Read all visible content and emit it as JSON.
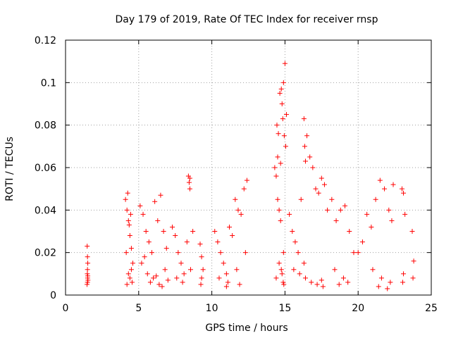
{
  "chart_data": {
    "type": "scatter",
    "title": "Day 179 of 2019, Rate Of TEC Index for receiver rnsp",
    "xlabel": "GPS time / hours",
    "ylabel": "ROTI / TECUs",
    "xlim": [
      0,
      25
    ],
    "ylim": [
      0,
      0.12
    ],
    "xticks": [
      0,
      5,
      10,
      15,
      20,
      25
    ],
    "xtick_labels": [
      "0",
      "5",
      "10",
      "15",
      "20",
      "25"
    ],
    "yticks": [
      0,
      0.02,
      0.04,
      0.06,
      0.08,
      0.1,
      0.12
    ],
    "ytick_labels": [
      "0",
      "0.02",
      "0.04",
      "0.06",
      "0.08",
      "0.1",
      "0.12"
    ],
    "grid": true,
    "marker": "plus",
    "color": "#ff0000",
    "series": [
      {
        "name": "ROTI",
        "x": [
          1.48,
          1.5,
          1.52,
          1.5,
          1.49,
          1.51,
          1.53,
          1.5,
          1.47,
          1.52,
          4.1,
          4.2,
          4.3,
          4.4,
          4.5,
          4.6,
          4.3,
          4.4,
          4.2,
          4.5,
          4.35,
          4.25,
          4.45,
          4.15,
          4.55,
          5.1,
          5.3,
          5.5,
          5.7,
          5.9,
          6.1,
          6.3,
          6.5,
          6.7,
          6.9,
          5.2,
          5.6,
          6.0,
          6.4,
          6.8,
          5.4,
          5.8,
          6.2,
          6.6,
          7.0,
          7.3,
          7.5,
          7.7,
          7.9,
          8.1,
          8.3,
          8.5,
          8.7,
          7.6,
          8.0,
          8.4,
          8.45,
          8.5,
          8.55,
          9.2,
          9.3,
          9.4,
          9.3,
          9.25,
          10.2,
          10.4,
          10.6,
          10.8,
          11.0,
          11.2,
          11.4,
          11.6,
          11.8,
          12.0,
          12.2,
          12.4,
          10.5,
          11.1,
          11.7,
          12.3,
          11.0,
          11.9,
          14.3,
          14.4,
          14.5,
          14.6,
          14.7,
          14.8,
          14.9,
          15.0,
          15.1,
          14.45,
          14.55,
          14.65,
          14.75,
          14.85,
          14.95,
          15.05,
          14.5,
          14.7,
          14.9,
          14.6,
          14.8,
          14.4,
          14.88,
          14.92,
          14.75,
          15.3,
          15.5,
          15.7,
          15.9,
          16.1,
          16.3,
          16.5,
          16.7,
          16.9,
          17.1,
          17.3,
          17.5,
          17.7,
          17.9,
          15.6,
          16.0,
          16.4,
          16.8,
          17.2,
          17.6,
          16.35,
          16.4,
          16.3,
          17.5,
          18.2,
          18.5,
          18.8,
          19.1,
          19.4,
          19.7,
          18.4,
          19.0,
          19.3,
          18.7,
          20.0,
          20.3,
          20.6,
          20.9,
          21.2,
          21.5,
          21.8,
          22.1,
          22.4,
          21.0,
          21.6,
          22.2,
          21.4,
          22.0,
          22.3,
          23.0,
          23.1,
          23.2,
          23.1,
          23.05,
          23.7,
          23.8,
          23.75
        ],
        "y": [
          0.023,
          0.018,
          0.015,
          0.012,
          0.01,
          0.008,
          0.007,
          0.006,
          0.005,
          0.009,
          0.045,
          0.04,
          0.035,
          0.028,
          0.022,
          0.015,
          0.01,
          0.008,
          0.005,
          0.012,
          0.033,
          0.048,
          0.038,
          0.02,
          0.006,
          0.042,
          0.038,
          0.03,
          0.025,
          0.02,
          0.044,
          0.035,
          0.047,
          0.03,
          0.022,
          0.015,
          0.01,
          0.008,
          0.005,
          0.012,
          0.018,
          0.006,
          0.009,
          0.004,
          0.007,
          0.032,
          0.028,
          0.02,
          0.015,
          0.01,
          0.025,
          0.055,
          0.03,
          0.008,
          0.006,
          0.056,
          0.053,
          0.05,
          0.012,
          0.024,
          0.018,
          0.012,
          0.008,
          0.005,
          0.03,
          0.025,
          0.02,
          0.015,
          0.01,
          0.032,
          0.028,
          0.045,
          0.04,
          0.038,
          0.05,
          0.054,
          0.008,
          0.006,
          0.012,
          0.02,
          0.004,
          0.005,
          0.06,
          0.056,
          0.045,
          0.04,
          0.035,
          0.09,
          0.1,
          0.109,
          0.085,
          0.08,
          0.076,
          0.095,
          0.097,
          0.083,
          0.075,
          0.07,
          0.065,
          0.062,
          0.02,
          0.015,
          0.01,
          0.008,
          0.006,
          0.005,
          0.012,
          0.038,
          0.03,
          0.025,
          0.02,
          0.045,
          0.083,
          0.075,
          0.065,
          0.06,
          0.05,
          0.048,
          0.055,
          0.052,
          0.04,
          0.012,
          0.01,
          0.008,
          0.006,
          0.005,
          0.004,
          0.07,
          0.063,
          0.015,
          0.007,
          0.045,
          0.035,
          0.04,
          0.042,
          0.03,
          0.02,
          0.012,
          0.008,
          0.006,
          0.005,
          0.02,
          0.025,
          0.038,
          0.032,
          0.045,
          0.054,
          0.05,
          0.04,
          0.052,
          0.012,
          0.008,
          0.006,
          0.004,
          0.003,
          0.035,
          0.05,
          0.048,
          0.038,
          0.01,
          0.006,
          0.03,
          0.016,
          0.008
        ]
      }
    ]
  }
}
